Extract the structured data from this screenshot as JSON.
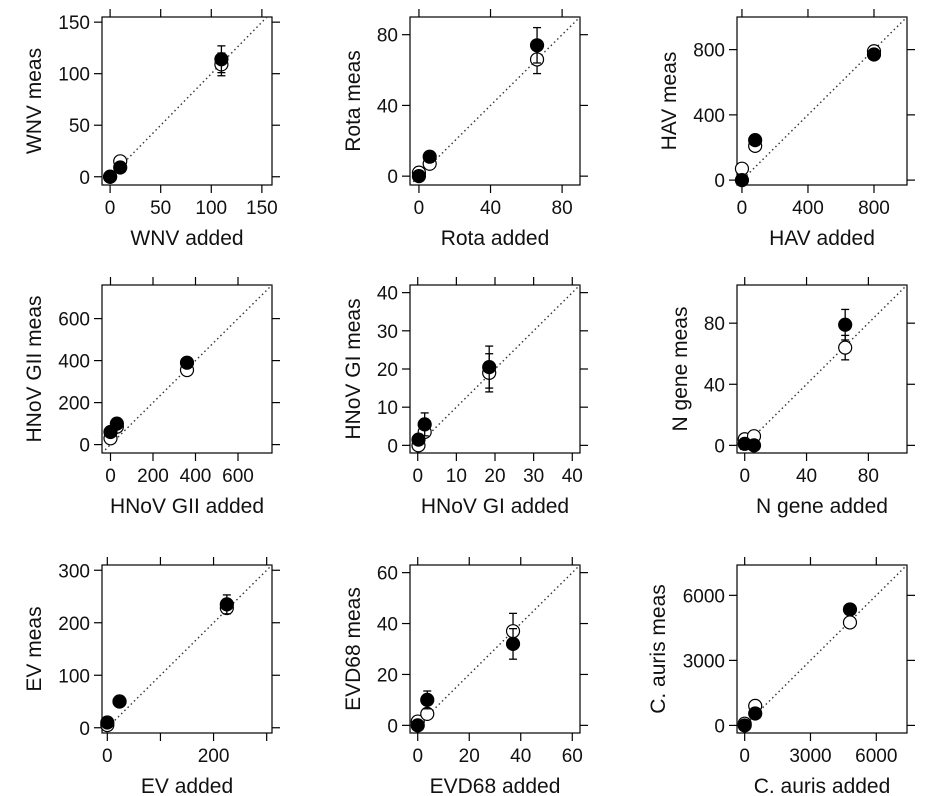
{
  "chart_data": [
    {
      "type": "scatter",
      "xlabel": "WNV added",
      "ylabel": "WNV meas",
      "xlim": [
        -8,
        160
      ],
      "ylim": [
        -8,
        155
      ],
      "xticks": [
        0,
        50,
        100,
        150
      ],
      "yticks": [
        0,
        50,
        100,
        150
      ],
      "identity_line": true,
      "series": [
        {
          "marker": "open",
          "points": [
            {
              "x": 0,
              "y": 0
            },
            {
              "x": 10,
              "y": 15
            },
            {
              "x": 110,
              "y": 109,
              "err": 11
            }
          ]
        },
        {
          "marker": "filled",
          "points": [
            {
              "x": 0,
              "y": 0
            },
            {
              "x": 10,
              "y": 9
            },
            {
              "x": 110,
              "y": 114,
              "err": 13
            }
          ]
        }
      ]
    },
    {
      "type": "scatter",
      "xlabel": "Rota added",
      "ylabel": "Rota meas",
      "xlim": [
        -5,
        90
      ],
      "ylim": [
        -5,
        90
      ],
      "xticks": [
        0,
        40,
        80
      ],
      "yticks": [
        0,
        40,
        80
      ],
      "identity_line": true,
      "series": [
        {
          "marker": "open",
          "points": [
            {
              "x": 0,
              "y": 2
            },
            {
              "x": 6,
              "y": 7
            },
            {
              "x": 66,
              "y": 66,
              "err": 8
            }
          ]
        },
        {
          "marker": "filled",
          "points": [
            {
              "x": 0,
              "y": 0
            },
            {
              "x": 6,
              "y": 11,
              "err": 3
            },
            {
              "x": 66,
              "y": 74,
              "err": 10
            }
          ]
        }
      ]
    },
    {
      "type": "scatter",
      "xlabel": "HAV added",
      "ylabel": "HAV meas",
      "xlim": [
        -30,
        1000
      ],
      "ylim": [
        -30,
        1000
      ],
      "xticks": [
        0,
        400,
        800
      ],
      "yticks": [
        0,
        400,
        800
      ],
      "identity_line": true,
      "series": [
        {
          "marker": "open",
          "points": [
            {
              "x": 0,
              "y": 70
            },
            {
              "x": 80,
              "y": 210
            },
            {
              "x": 800,
              "y": 790
            }
          ]
        },
        {
          "marker": "filled",
          "points": [
            {
              "x": 0,
              "y": 0
            },
            {
              "x": 80,
              "y": 245
            },
            {
              "x": 800,
              "y": 770
            }
          ]
        }
      ]
    },
    {
      "type": "scatter",
      "xlabel": "HNoV GII added",
      "ylabel": "HNoV GII meas",
      "xlim": [
        -40,
        760
      ],
      "ylim": [
        -40,
        760
      ],
      "xticks": [
        0,
        200,
        400,
        600
      ],
      "yticks": [
        0,
        200,
        400,
        600
      ],
      "identity_line": true,
      "series": [
        {
          "marker": "open",
          "points": [
            {
              "x": 0,
              "y": 30
            },
            {
              "x": 30,
              "y": 85
            },
            {
              "x": 360,
              "y": 355
            }
          ]
        },
        {
          "marker": "filled",
          "points": [
            {
              "x": 0,
              "y": 60
            },
            {
              "x": 30,
              "y": 100
            },
            {
              "x": 360,
              "y": 390
            }
          ]
        }
      ]
    },
    {
      "type": "scatter",
      "xlabel": "HNoV GI added",
      "ylabel": "HNoV GI meas",
      "xlim": [
        -2,
        42
      ],
      "ylim": [
        -2,
        42
      ],
      "xticks": [
        0,
        10,
        20,
        30,
        40
      ],
      "yticks": [
        0,
        10,
        20,
        30,
        40
      ],
      "identity_line": true,
      "series": [
        {
          "marker": "open",
          "points": [
            {
              "x": 0.2,
              "y": 0
            },
            {
              "x": 1.8,
              "y": 3.5
            },
            {
              "x": 18.5,
              "y": 19,
              "err": 5
            }
          ]
        },
        {
          "marker": "filled",
          "points": [
            {
              "x": 0.2,
              "y": 1.5
            },
            {
              "x": 1.8,
              "y": 5.5,
              "err": 3
            },
            {
              "x": 18.5,
              "y": 20.5,
              "err": 5.5
            }
          ]
        }
      ]
    },
    {
      "type": "scatter",
      "xlabel": "N gene added",
      "ylabel": "N gene meas",
      "xlim": [
        -5,
        105
      ],
      "ylim": [
        -5,
        105
      ],
      "xticks": [
        0,
        40,
        80
      ],
      "yticks": [
        0,
        40,
        80
      ],
      "identity_line": true,
      "series": [
        {
          "marker": "open",
          "points": [
            {
              "x": 0,
              "y": 4
            },
            {
              "x": 6,
              "y": 6
            },
            {
              "x": 65,
              "y": 64,
              "err": 8
            }
          ]
        },
        {
          "marker": "filled",
          "points": [
            {
              "x": 0,
              "y": 1
            },
            {
              "x": 6,
              "y": 0
            },
            {
              "x": 65,
              "y": 79,
              "err": 10
            }
          ]
        }
      ]
    },
    {
      "type": "scatter",
      "xlabel": "EV added",
      "ylabel": "EV meas",
      "xlim": [
        -10,
        310
      ],
      "ylim": [
        -10,
        310
      ],
      "xticks": [
        0,
        100,
        200,
        300
      ],
      "xticklabels": [
        "0",
        "",
        "200",
        ""
      ],
      "yticks": [
        0,
        100,
        200,
        300
      ],
      "identity_line": true,
      "series": [
        {
          "marker": "open",
          "points": [
            {
              "x": 0,
              "y": 5
            },
            {
              "x": 23,
              "y": 50
            },
            {
              "x": 225,
              "y": 228
            }
          ]
        },
        {
          "marker": "filled",
          "points": [
            {
              "x": 0,
              "y": 10
            },
            {
              "x": 23,
              "y": 50
            },
            {
              "x": 225,
              "y": 235,
              "err": 18
            }
          ]
        }
      ]
    },
    {
      "type": "scatter",
      "xlabel": "EVD68 added",
      "ylabel": "EVD68 meas",
      "xlim": [
        -3,
        63
      ],
      "ylim": [
        -3,
        63
      ],
      "xticks": [
        0,
        20,
        40,
        60
      ],
      "yticks": [
        0,
        20,
        40,
        60
      ],
      "identity_line": true,
      "series": [
        {
          "marker": "open",
          "points": [
            {
              "x": 0,
              "y": 1.5
            },
            {
              "x": 3.7,
              "y": 4.5
            },
            {
              "x": 37,
              "y": 37,
              "err": 7
            }
          ]
        },
        {
          "marker": "filled",
          "points": [
            {
              "x": 0,
              "y": 0
            },
            {
              "x": 3.7,
              "y": 10,
              "err": 3.5
            },
            {
              "x": 37,
              "y": 32,
              "err": 6
            }
          ]
        }
      ]
    },
    {
      "type": "scatter",
      "xlabel": "C.  auris added",
      "ylabel": "C.  auris meas",
      "xlim": [
        -350,
        7400
      ],
      "ylim": [
        -350,
        7400
      ],
      "xticks": [
        0,
        3000,
        6000
      ],
      "yticks": [
        0,
        3000,
        6000
      ],
      "identity_line": true,
      "series": [
        {
          "marker": "open",
          "points": [
            {
              "x": 0,
              "y": 80
            },
            {
              "x": 480,
              "y": 900
            },
            {
              "x": 4800,
              "y": 4750
            }
          ]
        },
        {
          "marker": "filled",
          "points": [
            {
              "x": 0,
              "y": 0
            },
            {
              "x": 480,
              "y": 550
            },
            {
              "x": 4800,
              "y": 5350
            }
          ]
        }
      ]
    }
  ]
}
